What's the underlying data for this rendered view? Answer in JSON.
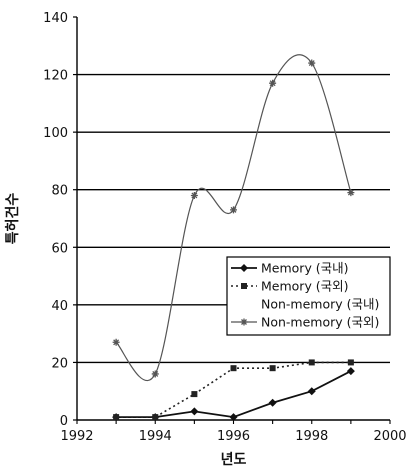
{
  "chart_data": {
    "type": "line",
    "title": "",
    "xlabel": "년도",
    "ylabel": "특허건수",
    "xlim": [
      1992,
      2000
    ],
    "ylim": [
      0,
      140
    ],
    "x_ticks": [
      1992,
      1994,
      1996,
      1998,
      2000
    ],
    "y_ticks": [
      0,
      20,
      40,
      60,
      80,
      100,
      120,
      140
    ],
    "grid": "horizontal",
    "legend_position": "middle-right",
    "series": [
      {
        "name": "Memory (국내)",
        "marker": "diamond",
        "line": "solid",
        "color": "#111111",
        "x": [
          1993,
          1994,
          1995,
          1996,
          1997,
          1998,
          1999
        ],
        "y": [
          1,
          1,
          3,
          1,
          6,
          10,
          17
        ]
      },
      {
        "name": "Memory (국외)",
        "marker": "square",
        "line": "dotted",
        "color": "#222222",
        "x": [
          1993,
          1994,
          1995,
          1996,
          1997,
          1998,
          1999
        ],
        "y": [
          1,
          1,
          9,
          18,
          18,
          20,
          20
        ]
      },
      {
        "name": "Non-memory (국내)",
        "marker": "none",
        "line": "none",
        "color": "#444444",
        "x": [],
        "y": []
      },
      {
        "name": "Non-memory (국외)",
        "marker": "star",
        "line": "solid-thin",
        "color": "#555555",
        "x": [
          1993,
          1994,
          1995,
          1996,
          1997,
          1998,
          1999
        ],
        "y": [
          27,
          16,
          78,
          73,
          117,
          124,
          79
        ]
      }
    ]
  }
}
